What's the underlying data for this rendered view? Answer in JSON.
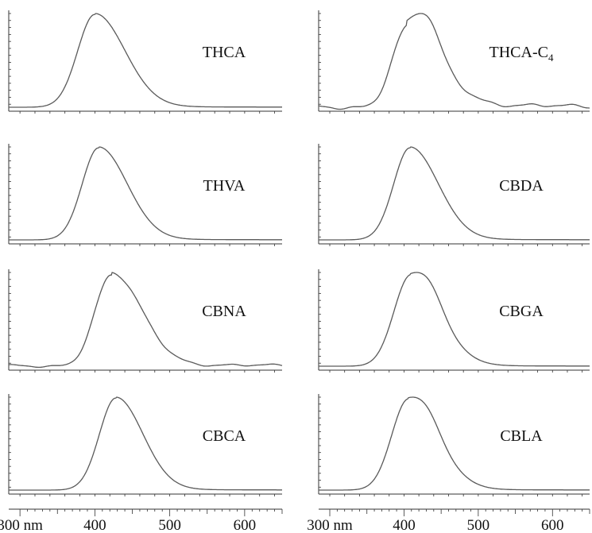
{
  "chart_data": {
    "type": "line",
    "layout": "4 rows x 2 columns",
    "x_axis": {
      "ticks": [
        300,
        400,
        500,
        600
      ],
      "tick_labels": [
        "300 nm",
        "400",
        "500",
        "600"
      ],
      "xlim": [
        285,
        650
      ]
    },
    "panels": [
      {
        "label": "THCA",
        "subscript": "",
        "peak_nm": 400,
        "sigma_left": 23,
        "sigma_right": 40,
        "shoulder": 0,
        "noise": 0,
        "baseline_tail": 0.01
      },
      {
        "label": "THCA-C",
        "subscript": "4",
        "peak_nm": 403,
        "sigma_left": 20,
        "sigma_right": 45,
        "shoulder": 0.35,
        "noise": 0.035,
        "baseline_tail": 0.06
      },
      {
        "label": "THVA",
        "subscript": "",
        "peak_nm": 405,
        "sigma_left": 22,
        "sigma_right": 38,
        "shoulder": 0,
        "noise": 0,
        "baseline_tail": 0.01
      },
      {
        "label": "CBDA",
        "subscript": "",
        "peak_nm": 408,
        "sigma_left": 22,
        "sigma_right": 38,
        "shoulder": 0,
        "noise": 0,
        "baseline_tail": 0.01
      },
      {
        "label": "CBNA",
        "subscript": "",
        "peak_nm": 422,
        "sigma_left": 22,
        "sigma_right": 40,
        "shoulder": 0,
        "noise": 0.02,
        "baseline_tail": 0.03
      },
      {
        "label": "CBGA",
        "subscript": "",
        "peak_nm": 408,
        "sigma_left": 22,
        "sigma_right": 40,
        "shoulder": 0.15,
        "noise": 0,
        "baseline_tail": 0.01
      },
      {
        "label": "CBCA",
        "subscript": "",
        "peak_nm": 428,
        "sigma_left": 22,
        "sigma_right": 36,
        "shoulder": 0,
        "noise": 0,
        "baseline_tail": 0.01
      },
      {
        "label": "CBLA",
        "subscript": "",
        "peak_nm": 405,
        "sigma_left": 22,
        "sigma_right": 40,
        "shoulder": 0.12,
        "noise": 0,
        "baseline_tail": 0.01
      }
    ],
    "grid": false,
    "legend": "none",
    "colors": {
      "line": "#5a5a5a",
      "axis": "#333333",
      "text": "#111111"
    }
  }
}
